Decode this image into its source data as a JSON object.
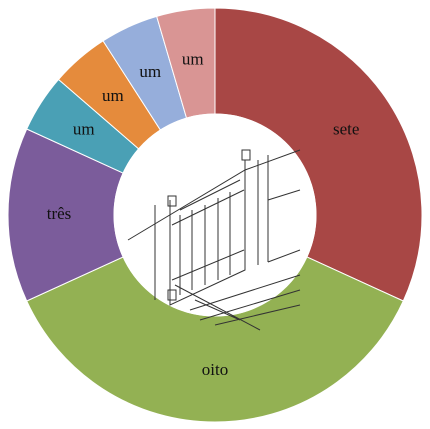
{
  "chart_data": {
    "type": "donut",
    "categories": [
      "sete",
      "oito",
      "três",
      "um",
      "um",
      "um",
      "um"
    ],
    "values": [
      7,
      8,
      3,
      1,
      1,
      1,
      1
    ],
    "colors": [
      "#a84745",
      "#93b153",
      "#7b5c9b",
      "#4aa0b5",
      "#e58b3c",
      "#96aedb",
      "#d99594"
    ]
  }
}
